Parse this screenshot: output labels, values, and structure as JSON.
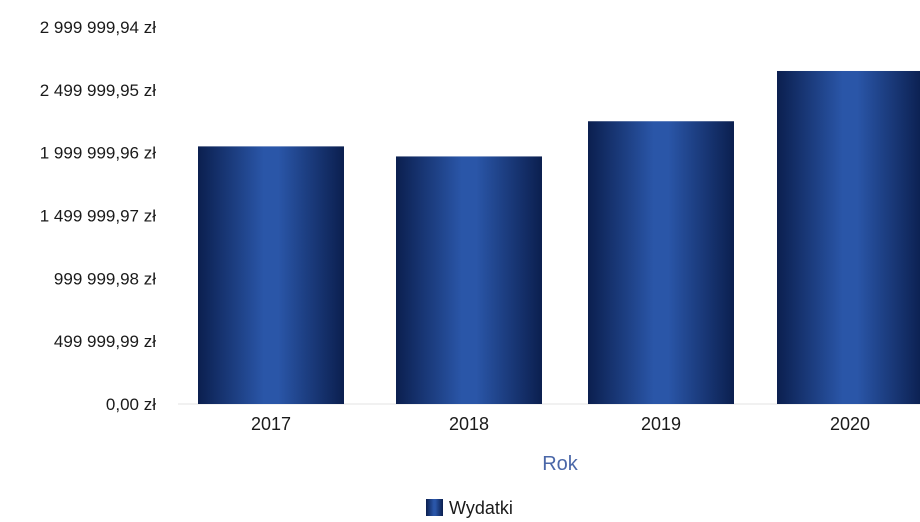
{
  "chart_data": {
    "type": "bar",
    "categories": [
      "2017",
      "2018",
      "2019",
      "2020"
    ],
    "series": [
      {
        "name": "Wydatki",
        "values": [
          2050000,
          1970000,
          2250000,
          2650000
        ]
      }
    ],
    "xlabel": "Rok",
    "ylabel": "",
    "ylim": [
      0,
      2999999.94
    ],
    "yticks": [
      "0,00 zł",
      "499 999,99 zł",
      "999 999,98 zł",
      "1 499 999,97 zł",
      "1 999 999,96 zł",
      "2 499 999,95 zł",
      "2 999 999,94 zł"
    ],
    "legend": {
      "position": "bottom-center",
      "entries": [
        "Wydatki"
      ]
    },
    "grid": false,
    "colors": {
      "bar_dark": "#0b1f4f",
      "bar_light": "#2a56a8",
      "axis_label": "#4a67a8"
    }
  }
}
